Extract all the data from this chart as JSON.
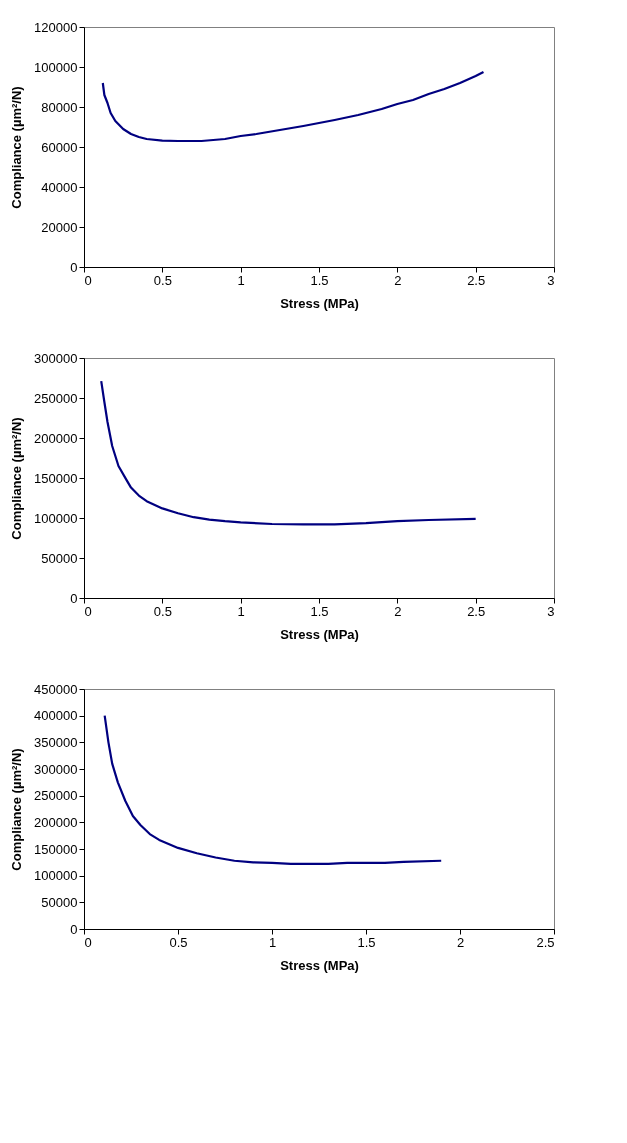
{
  "chart_data": [
    {
      "type": "line",
      "xlabel": "Stress (MPa)",
      "ylabel": "Compliance (µm²/N)",
      "grid": false,
      "marker": "none",
      "line_style": "solid",
      "xlim": [
        0,
        3
      ],
      "xticks": [
        0,
        0.5,
        1,
        1.5,
        2,
        2.5,
        3
      ],
      "ylim": [
        0,
        120000
      ],
      "yticks": [
        0,
        20000,
        40000,
        60000,
        80000,
        100000,
        120000
      ],
      "series": [
        {
          "color": "#000080",
          "x": [
            0.12,
            0.13,
            0.15,
            0.17,
            0.2,
            0.25,
            0.3,
            0.35,
            0.4,
            0.5,
            0.6,
            0.75,
            0.9,
            1.0,
            1.1,
            1.25,
            1.4,
            1.5,
            1.6,
            1.75,
            1.9,
            2.0,
            2.1,
            2.2,
            2.3,
            2.4,
            2.5,
            2.55
          ],
          "values": [
            92000,
            86000,
            82000,
            77000,
            73000,
            69000,
            66500,
            65000,
            64000,
            63200,
            63000,
            63000,
            64000,
            65500,
            66500,
            68500,
            70500,
            72000,
            73500,
            76000,
            79000,
            81500,
            83500,
            86500,
            89000,
            92000,
            95500,
            97500
          ]
        }
      ]
    },
    {
      "type": "line",
      "xlabel": "Stress (MPa)",
      "ylabel": "Compliance (µm²/N)",
      "grid": false,
      "marker": "none",
      "line_style": "solid",
      "xlim": [
        0,
        3
      ],
      "xticks": [
        0,
        0.5,
        1,
        1.5,
        2,
        2.5,
        3
      ],
      "ylim": [
        0,
        300000
      ],
      "yticks": [
        0,
        50000,
        100000,
        150000,
        200000,
        250000,
        300000
      ],
      "series": [
        {
          "color": "#000080",
          "x": [
            0.11,
            0.13,
            0.15,
            0.18,
            0.22,
            0.27,
            0.3,
            0.35,
            0.4,
            0.5,
            0.6,
            0.7,
            0.8,
            0.9,
            1.0,
            1.2,
            1.4,
            1.6,
            1.8,
            2.0,
            2.2,
            2.5
          ],
          "values": [
            271000,
            245000,
            220000,
            190000,
            165000,
            148000,
            138000,
            128000,
            121000,
            112000,
            106000,
            101000,
            98000,
            96000,
            94500,
            92500,
            92000,
            92000,
            93500,
            96000,
            97500,
            99000
          ]
        }
      ]
    },
    {
      "type": "line",
      "xlabel": "Stress (MPa)",
      "ylabel": "Compliance (µm²/N)",
      "grid": false,
      "marker": "none",
      "line_style": "solid",
      "xlim": [
        0,
        2.5
      ],
      "xticks": [
        0,
        0.5,
        1,
        1.5,
        2,
        2.5
      ],
      "ylim": [
        0,
        450000
      ],
      "yticks": [
        0,
        50000,
        100000,
        150000,
        200000,
        250000,
        300000,
        350000,
        400000,
        450000
      ],
      "series": [
        {
          "color": "#000080",
          "x": [
            0.11,
            0.13,
            0.15,
            0.18,
            0.22,
            0.26,
            0.3,
            0.35,
            0.4,
            0.5,
            0.6,
            0.7,
            0.8,
            0.9,
            1.0,
            1.1,
            1.3,
            1.4,
            1.6,
            1.7,
            1.9
          ],
          "values": [
            400000,
            350000,
            310000,
            275000,
            240000,
            212000,
            195000,
            178000,
            167000,
            152000,
            142000,
            134000,
            128000,
            125000,
            124000,
            122000,
            122000,
            124000,
            124000,
            126000,
            128000
          ]
        }
      ]
    }
  ]
}
